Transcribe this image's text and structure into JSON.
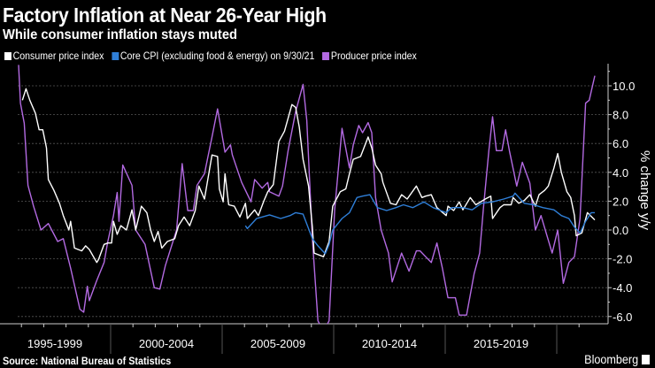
{
  "header": {
    "title": "Factory Inflation at Near 26-Year High",
    "subtitle": "While consumer inflation stays muted"
  },
  "footer": {
    "source": "Source: National Bureau of Statistics",
    "brand": "Bloomberg"
  },
  "chart_data": {
    "type": "line",
    "title": "Factory Inflation at Near 26-Year High",
    "subtitle": "While consumer inflation stays muted",
    "ylabel": "% change y/y",
    "ylim": [
      -6.0,
      11.0
    ],
    "yticks": [
      "10.0",
      "8.0",
      "6.0",
      "4.0",
      "2.0",
      "0.0",
      "-2.0",
      "-4.0",
      "-6.0"
    ],
    "ytick_values": [
      10,
      8,
      6,
      4,
      2,
      0,
      -2,
      -4,
      -6
    ],
    "xlabel": "",
    "x_categories": [
      "1995-1999",
      "2000-2004",
      "2005-2009",
      "2010-2014",
      "2015-2019"
    ],
    "grid": true,
    "legend_position": "top-left",
    "y_axis_side": "right",
    "series": [
      {
        "name": "Consumer price index",
        "color": "#ffffff",
        "points": [
          [
            "1996-01",
            9.0
          ],
          [
            "1996-03",
            9.8
          ],
          [
            "1996-05",
            9.0
          ],
          [
            "1996-08",
            8.1
          ],
          [
            "1996-10",
            6.95
          ],
          [
            "1996-12",
            6.95
          ],
          [
            "1997-02",
            5.7
          ],
          [
            "1997-03",
            3.5
          ],
          [
            "1997-06",
            2.75
          ],
          [
            "1997-09",
            1.85
          ],
          [
            "1997-11",
            1.0
          ],
          [
            "1998-02",
            0.0
          ],
          [
            "1998-03",
            0.6
          ],
          [
            "1998-05",
            -1.25
          ],
          [
            "1998-09",
            -1.45
          ],
          [
            "1998-11",
            -1.1
          ],
          [
            "1999-01",
            -1.35
          ],
          [
            "1999-05",
            -2.25
          ],
          [
            "1999-06",
            -2.05
          ],
          [
            "1999-09",
            -1.0
          ],
          [
            "1999-11",
            -0.9
          ],
          [
            "2000-01",
            -0.9
          ],
          [
            "2000-02",
            0.6
          ],
          [
            "2000-04",
            -0.3
          ],
          [
            "2000-06",
            0.3
          ],
          [
            "2000-09",
            0.0
          ],
          [
            "2000-12",
            1.4
          ],
          [
            "2001-02",
            0.0
          ],
          [
            "2001-05",
            1.65
          ],
          [
            "2001-08",
            1.2
          ],
          [
            "2001-10",
            0.0
          ],
          [
            "2001-12",
            -0.8
          ],
          [
            "2002-02",
            -0.1
          ],
          [
            "2002-04",
            -1.25
          ],
          [
            "2002-07",
            -0.8
          ],
          [
            "2002-11",
            -0.6
          ],
          [
            "2003-01",
            0.3
          ],
          [
            "2003-04",
            0.9
          ],
          [
            "2003-07",
            0.3
          ],
          [
            "2003-10",
            1.35
          ],
          [
            "2003-12",
            3.05
          ],
          [
            "2004-03",
            2.15
          ],
          [
            "2004-07",
            5.2
          ],
          [
            "2004-10",
            5.1
          ],
          [
            "2004-11",
            2.85
          ],
          [
            "2005-01",
            1.95
          ],
          [
            "2005-02",
            3.9
          ],
          [
            "2005-04",
            1.75
          ],
          [
            "2005-07",
            1.65
          ],
          [
            "2005-10",
            0.9
          ],
          [
            "2006-01",
            1.85
          ],
          [
            "2006-02",
            0.8
          ],
          [
            "2006-06",
            1.4
          ],
          [
            "2006-08",
            1.0
          ],
          [
            "2006-11",
            2.05
          ],
          [
            "2007-01",
            2.65
          ],
          [
            "2007-04",
            3.15
          ],
          [
            "2007-07",
            6.15
          ],
          [
            "2007-10",
            6.85
          ],
          [
            "2008-02",
            8.7
          ],
          [
            "2008-04",
            8.5
          ],
          [
            "2008-06",
            7.15
          ],
          [
            "2008-08",
            4.9
          ],
          [
            "2008-11",
            3.05
          ],
          [
            "2009-01",
            0.2
          ],
          [
            "2009-02",
            -1.6
          ],
          [
            "2009-07",
            -1.85
          ],
          [
            "2009-10",
            -0.8
          ],
          [
            "2009-12",
            1.65
          ],
          [
            "2010-04",
            2.65
          ],
          [
            "2010-07",
            2.85
          ],
          [
            "2010-09",
            3.9
          ],
          [
            "2010-11",
            4.9
          ],
          [
            "2011-03",
            5.1
          ],
          [
            "2011-07",
            6.45
          ],
          [
            "2011-09",
            5.7
          ],
          [
            "2011-11",
            4.5
          ],
          [
            "2012-02",
            3.9
          ],
          [
            "2012-03",
            3.3
          ],
          [
            "2012-07",
            1.85
          ],
          [
            "2012-10",
            1.75
          ],
          [
            "2013-01",
            2.45
          ],
          [
            "2013-04",
            2.15
          ],
          [
            "2013-09",
            3.05
          ],
          [
            "2013-12",
            2.25
          ],
          [
            "2014-02",
            2.35
          ],
          [
            "2014-05",
            2.45
          ],
          [
            "2014-08",
            1.55
          ],
          [
            "2015-01",
            1.0
          ],
          [
            "2015-02",
            1.65
          ],
          [
            "2015-05",
            1.35
          ],
          [
            "2015-08",
            1.95
          ],
          [
            "2015-10",
            1.4
          ],
          [
            "2016-02",
            2.25
          ],
          [
            "2016-05",
            1.75
          ],
          [
            "2016-10",
            2.15
          ],
          [
            "2017-01",
            2.35
          ],
          [
            "2017-02",
            0.8
          ],
          [
            "2017-06",
            1.55
          ],
          [
            "2017-08",
            1.75
          ],
          [
            "2017-12",
            1.75
          ],
          [
            "2018-01",
            2.25
          ],
          [
            "2018-04",
            1.85
          ],
          [
            "2018-07",
            2.05
          ],
          [
            "2018-10",
            2.45
          ],
          [
            "2019-01",
            1.65
          ],
          [
            "2019-03",
            2.45
          ],
          [
            "2019-06",
            2.75
          ],
          [
            "2019-08",
            3.05
          ],
          [
            "2019-11",
            4.3
          ],
          [
            "2020-01",
            5.3
          ],
          [
            "2020-03",
            4.0
          ],
          [
            "2020-06",
            2.65
          ],
          [
            "2020-08",
            2.25
          ],
          [
            "2020-10",
            1.0
          ],
          [
            "2020-11",
            -0.4
          ],
          [
            "2021-02",
            -0.2
          ],
          [
            "2021-05",
            1.2
          ],
          [
            "2021-09",
            0.7
          ]
        ]
      },
      {
        "name": "Core CPI (excluding food & energy) on 9/30/21",
        "color": "#2f7fd8",
        "points": [
          [
            "2006-01",
            0.3
          ],
          [
            "2006-02",
            0.1
          ],
          [
            "2006-07",
            0.8
          ],
          [
            "2006-10",
            0.9
          ],
          [
            "2007-02",
            1.05
          ],
          [
            "2007-08",
            0.8
          ],
          [
            "2008-01",
            1.0
          ],
          [
            "2008-04",
            1.2
          ],
          [
            "2008-08",
            1.1
          ],
          [
            "2009-01",
            -0.6
          ],
          [
            "2009-04",
            -1.1
          ],
          [
            "2009-08",
            -1.65
          ],
          [
            "2009-10",
            -1.0
          ],
          [
            "2009-12",
            0.0
          ],
          [
            "2010-05",
            0.8
          ],
          [
            "2010-09",
            1.2
          ],
          [
            "2011-01",
            2.25
          ],
          [
            "2011-04",
            2.35
          ],
          [
            "2011-08",
            2.45
          ],
          [
            "2011-12",
            1.55
          ],
          [
            "2012-05",
            1.35
          ],
          [
            "2012-10",
            1.55
          ],
          [
            "2013-02",
            1.75
          ],
          [
            "2013-07",
            1.55
          ],
          [
            "2014-01",
            1.95
          ],
          [
            "2014-06",
            1.55
          ],
          [
            "2015-01",
            1.2
          ],
          [
            "2015-04",
            1.55
          ],
          [
            "2015-10",
            1.55
          ],
          [
            "2016-03",
            1.4
          ],
          [
            "2016-08",
            1.85
          ],
          [
            "2017-02",
            1.95
          ],
          [
            "2017-08",
            2.15
          ],
          [
            "2018-01",
            2.35
          ],
          [
            "2018-02",
            2.55
          ],
          [
            "2018-07",
            1.85
          ],
          [
            "2018-12",
            1.75
          ],
          [
            "2019-05",
            1.55
          ],
          [
            "2019-11",
            1.4
          ],
          [
            "2020-03",
            1.0
          ],
          [
            "2020-07",
            0.8
          ],
          [
            "2020-10",
            0.2
          ],
          [
            "2021-01",
            -0.2
          ],
          [
            "2021-04",
            0.6
          ],
          [
            "2021-07",
            1.2
          ],
          [
            "2021-09",
            1.2
          ]
        ]
      },
      {
        "name": "Producer price index",
        "color": "#b36ae2",
        "points": [
          [
            "1995-11",
            11.45
          ],
          [
            "1995-12",
            8.8
          ],
          [
            "1996-02",
            7.4
          ],
          [
            "1996-04",
            3.1
          ],
          [
            "1996-07",
            1.65
          ],
          [
            "1996-11",
            0.0
          ],
          [
            "1997-03",
            0.45
          ],
          [
            "1997-08",
            -0.8
          ],
          [
            "1997-11",
            -0.6
          ],
          [
            "1998-03",
            -2.65
          ],
          [
            "1998-08",
            -5.5
          ],
          [
            "1998-10",
            -5.7
          ],
          [
            "1998-12",
            -3.9
          ],
          [
            "1999-01",
            -4.9
          ],
          [
            "1999-05",
            -3.5
          ],
          [
            "1999-09",
            -2.25
          ],
          [
            "1999-11",
            -0.8
          ],
          [
            "2000-02",
            1.0
          ],
          [
            "2000-04",
            2.6
          ],
          [
            "2000-05",
            0.6
          ],
          [
            "2000-07",
            4.5
          ],
          [
            "2000-12",
            3.1
          ],
          [
            "2001-02",
            0.0
          ],
          [
            "2001-07",
            -1.0
          ],
          [
            "2001-12",
            -4.0
          ],
          [
            "2002-03",
            -4.1
          ],
          [
            "2002-06",
            -2.45
          ],
          [
            "2002-12",
            0.0
          ],
          [
            "2003-03",
            4.6
          ],
          [
            "2003-06",
            1.35
          ],
          [
            "2003-09",
            1.35
          ],
          [
            "2003-11",
            3.1
          ],
          [
            "2004-03",
            3.9
          ],
          [
            "2004-07",
            6.45
          ],
          [
            "2004-10",
            8.4
          ],
          [
            "2005-02",
            5.4
          ],
          [
            "2005-05",
            5.9
          ],
          [
            "2005-06",
            5.2
          ],
          [
            "2005-11",
            3.3
          ],
          [
            "2006-04",
            1.95
          ],
          [
            "2006-06",
            3.5
          ],
          [
            "2006-10",
            2.9
          ],
          [
            "2007-01",
            3.3
          ],
          [
            "2007-02",
            2.65
          ],
          [
            "2007-07",
            2.35
          ],
          [
            "2007-09",
            3.05
          ],
          [
            "2007-12",
            5.5
          ],
          [
            "2008-04",
            8.2
          ],
          [
            "2008-08",
            10.1
          ],
          [
            "2008-10",
            7.6
          ],
          [
            "2009-01",
            -0.6
          ],
          [
            "2009-04",
            -6.3
          ],
          [
            "2009-07",
            -7.0
          ],
          [
            "2009-10",
            -6.3
          ],
          [
            "2010-01",
            1.4
          ],
          [
            "2010-05",
            7.05
          ],
          [
            "2010-09",
            4.3
          ],
          [
            "2010-11",
            5.9
          ],
          [
            "2011-02",
            7.25
          ],
          [
            "2011-04",
            6.75
          ],
          [
            "2011-07",
            7.45
          ],
          [
            "2011-09",
            6.75
          ],
          [
            "2011-11",
            2.25
          ],
          [
            "2012-02",
            0.0
          ],
          [
            "2012-06",
            -1.6
          ],
          [
            "2012-08",
            -3.6
          ],
          [
            "2013-01",
            -1.6
          ],
          [
            "2013-05",
            -2.85
          ],
          [
            "2013-09",
            -1.45
          ],
          [
            "2013-11",
            -1.45
          ],
          [
            "2014-02",
            -1.85
          ],
          [
            "2014-05",
            -2.25
          ],
          [
            "2014-08",
            -0.9
          ],
          [
            "2014-11",
            -2.65
          ],
          [
            "2015-02",
            -4.7
          ],
          [
            "2015-06",
            -4.7
          ],
          [
            "2015-08",
            -5.9
          ],
          [
            "2015-12",
            -5.9
          ],
          [
            "2016-04",
            -3.05
          ],
          [
            "2016-07",
            -1.6
          ],
          [
            "2016-09",
            1.4
          ],
          [
            "2016-12",
            5.5
          ],
          [
            "2017-02",
            7.85
          ],
          [
            "2017-04",
            5.5
          ],
          [
            "2017-07",
            5.5
          ],
          [
            "2017-09",
            6.95
          ],
          [
            "2017-11",
            5.5
          ],
          [
            "2018-03",
            3.05
          ],
          [
            "2018-06",
            4.7
          ],
          [
            "2018-10",
            3.25
          ],
          [
            "2019-01",
            0.0
          ],
          [
            "2019-04",
            1.0
          ],
          [
            "2019-10",
            -1.6
          ],
          [
            "2020-01",
            0.0
          ],
          [
            "2020-04",
            -3.7
          ],
          [
            "2020-07",
            -2.25
          ],
          [
            "2020-10",
            -1.85
          ],
          [
            "2021-01",
            0.8
          ],
          [
            "2021-04",
            8.8
          ],
          [
            "2021-06",
            9.0
          ],
          [
            "2021-09",
            10.7
          ]
        ]
      }
    ]
  }
}
